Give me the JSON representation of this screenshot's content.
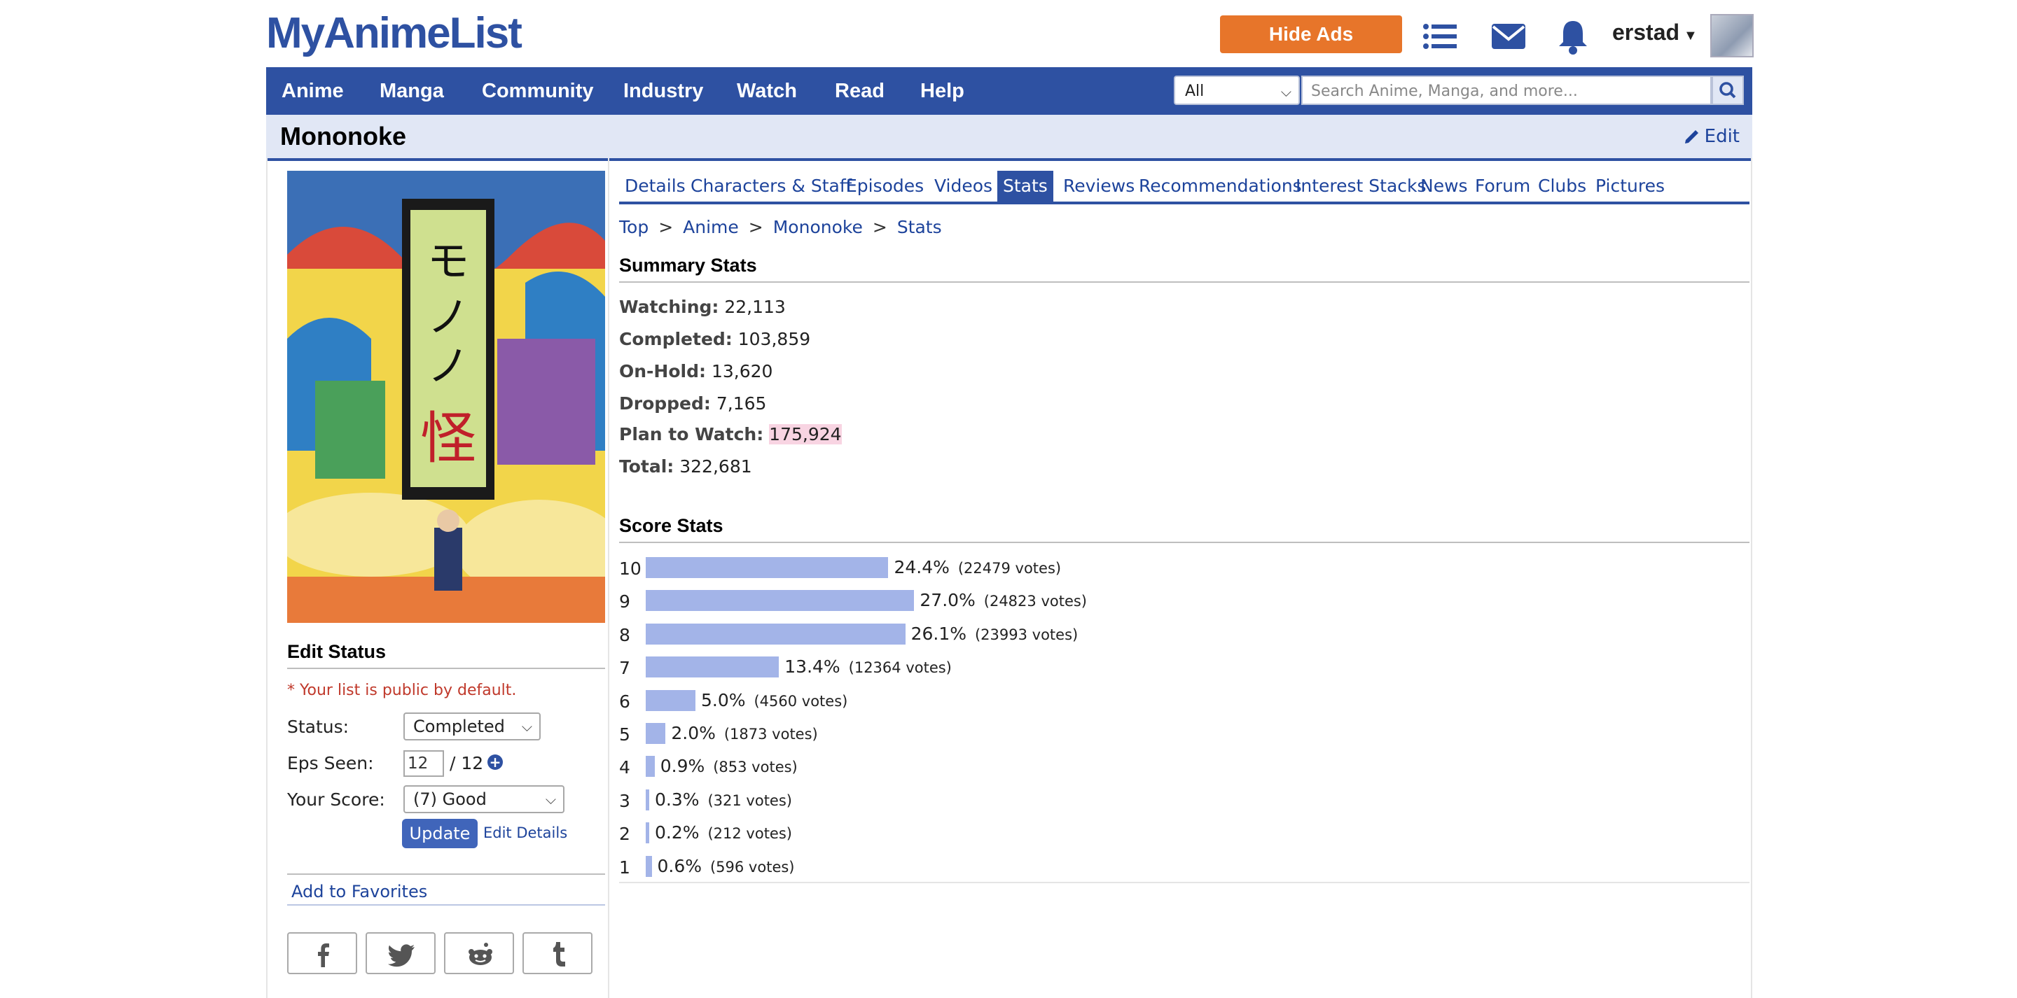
{
  "header": {
    "logo": "MyAnimeList",
    "hide_ads_label": "Hide Ads",
    "username": "erstad",
    "icons": [
      "list-icon",
      "mail-icon",
      "bell-icon"
    ]
  },
  "nav": {
    "items": [
      "Anime",
      "Manga",
      "Community",
      "Industry",
      "Watch",
      "Read",
      "Help"
    ],
    "search_category": "All",
    "search_placeholder": "Search Anime, Manga, and more..."
  },
  "title": "Mononoke",
  "edit_label": "Edit",
  "left": {
    "edit_status_heading": "Edit Status",
    "public_note": "* Your list is public by default.",
    "status_label": "Status:",
    "status_value": "Completed",
    "eps_label": "Eps Seen:",
    "eps_value": "12",
    "eps_total": "/ 12",
    "score_label": "Your Score:",
    "score_value": "(7) Good",
    "update_label": "Update",
    "edit_details_label": "Edit Details",
    "favorites_label": "Add to Favorites",
    "share_icons": [
      "facebook-icon",
      "twitter-icon",
      "reddit-icon",
      "tumblr-icon"
    ]
  },
  "tabs": [
    "Details",
    "Characters & Staff",
    "Episodes",
    "Videos",
    "Stats",
    "Reviews",
    "Recommendations",
    "Interest Stacks",
    "News",
    "Forum",
    "Clubs",
    "Pictures"
  ],
  "active_tab": "Stats",
  "breadcrumbs": [
    "Top",
    "Anime",
    "Mononoke",
    "Stats"
  ],
  "summary": {
    "heading": "Summary Stats",
    "rows": [
      {
        "label": "Watching:",
        "value": "22,113"
      },
      {
        "label": "Completed:",
        "value": "103,859"
      },
      {
        "label": "On-Hold:",
        "value": "13,620"
      },
      {
        "label": "Dropped:",
        "value": "7,165"
      },
      {
        "label": "Plan to Watch:",
        "value": "175,924"
      },
      {
        "label": "Total:",
        "value": "322,681"
      }
    ]
  },
  "score_stats": {
    "heading": "Score Stats",
    "rows": [
      {
        "score": "10",
        "percent": "24.4%",
        "votes": "(22479 votes)",
        "pct_value": 24.4
      },
      {
        "score": "9",
        "percent": "27.0%",
        "votes": "(24823 votes)",
        "pct_value": 27.0
      },
      {
        "score": "8",
        "percent": "26.1%",
        "votes": "(23993 votes)",
        "pct_value": 26.1
      },
      {
        "score": "7",
        "percent": "13.4%",
        "votes": "(12364 votes)",
        "pct_value": 13.4
      },
      {
        "score": "6",
        "percent": "5.0%",
        "votes": "(4560 votes)",
        "pct_value": 5.0
      },
      {
        "score": "5",
        "percent": "2.0%",
        "votes": "(1873 votes)",
        "pct_value": 2.0
      },
      {
        "score": "4",
        "percent": "0.9%",
        "votes": "(853 votes)",
        "pct_value": 0.9
      },
      {
        "score": "3",
        "percent": "0.3%",
        "votes": "(321 votes)",
        "pct_value": 0.3
      },
      {
        "score": "2",
        "percent": "0.2%",
        "votes": "(212 votes)",
        "pct_value": 0.2
      },
      {
        "score": "1",
        "percent": "0.6%",
        "votes": "(596 votes)",
        "pct_value": 0.6
      }
    ]
  },
  "colors": {
    "brand": "#2e51a2",
    "hide_ads": "#e7752a",
    "score_bar": "#a3b4e8",
    "highlight": "#f8d4e2"
  }
}
